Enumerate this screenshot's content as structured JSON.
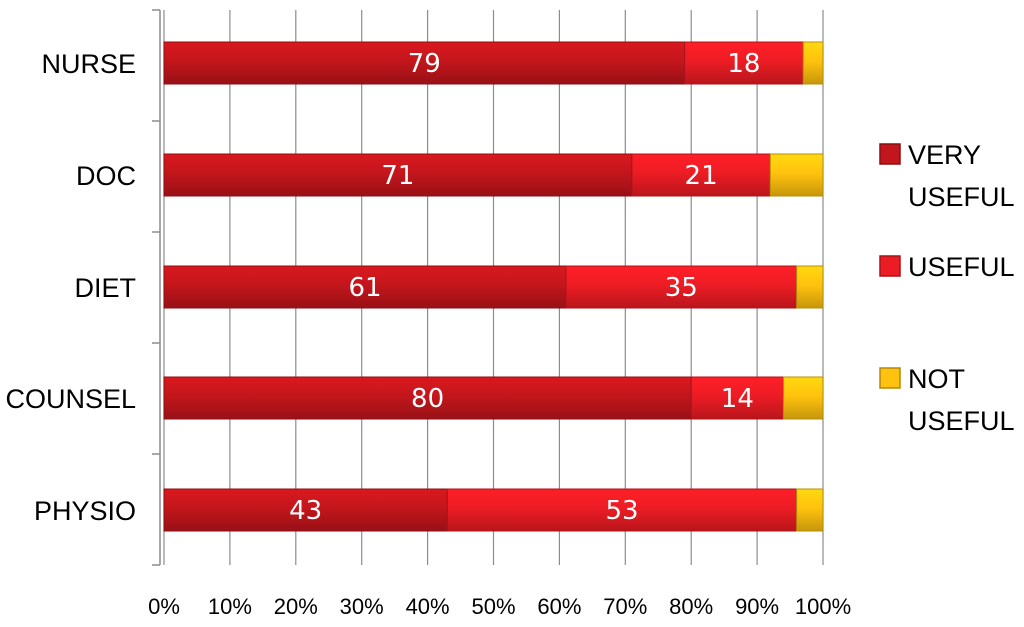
{
  "chart_data": {
    "type": "bar",
    "orientation": "horizontal",
    "stacked": "percent",
    "categories": [
      "NURSE",
      "DOC",
      "DIET",
      "COUNSEL",
      "PHYSIO"
    ],
    "series": [
      {
        "name": "VERY USEFUL",
        "color": "#c3161c",
        "values": [
          79,
          71,
          61,
          80,
          43
        ],
        "labels": [
          "79",
          "71",
          "61",
          "80",
          "43"
        ]
      },
      {
        "name": "USEFUL",
        "color": "#ed1c24",
        "values": [
          18,
          21,
          35,
          14,
          53
        ],
        "labels": [
          "18",
          "21",
          "35",
          "14",
          "53"
        ]
      },
      {
        "name": "NOT USEFUL",
        "color": "#ffc20e",
        "values": [
          3,
          8,
          4,
          6,
          4
        ],
        "labels": [
          "",
          "",
          "",
          "",
          ""
        ]
      }
    ],
    "x_ticks": [
      "0%",
      "10%",
      "20%",
      "30%",
      "40%",
      "50%",
      "60%",
      "70%",
      "80%",
      "90%",
      "100%"
    ],
    "xlim": [
      0,
      100
    ],
    "legend_position": "right",
    "grid": "vertical",
    "legend": [
      {
        "lines": [
          "VERY",
          "USEFUL"
        ],
        "color": "#c3161c"
      },
      {
        "lines": [
          "USEFUL"
        ],
        "color": "#ed1c24"
      },
      {
        "lines": [
          "NOT",
          "USEFUL"
        ],
        "color": "#ffc20e"
      }
    ]
  }
}
